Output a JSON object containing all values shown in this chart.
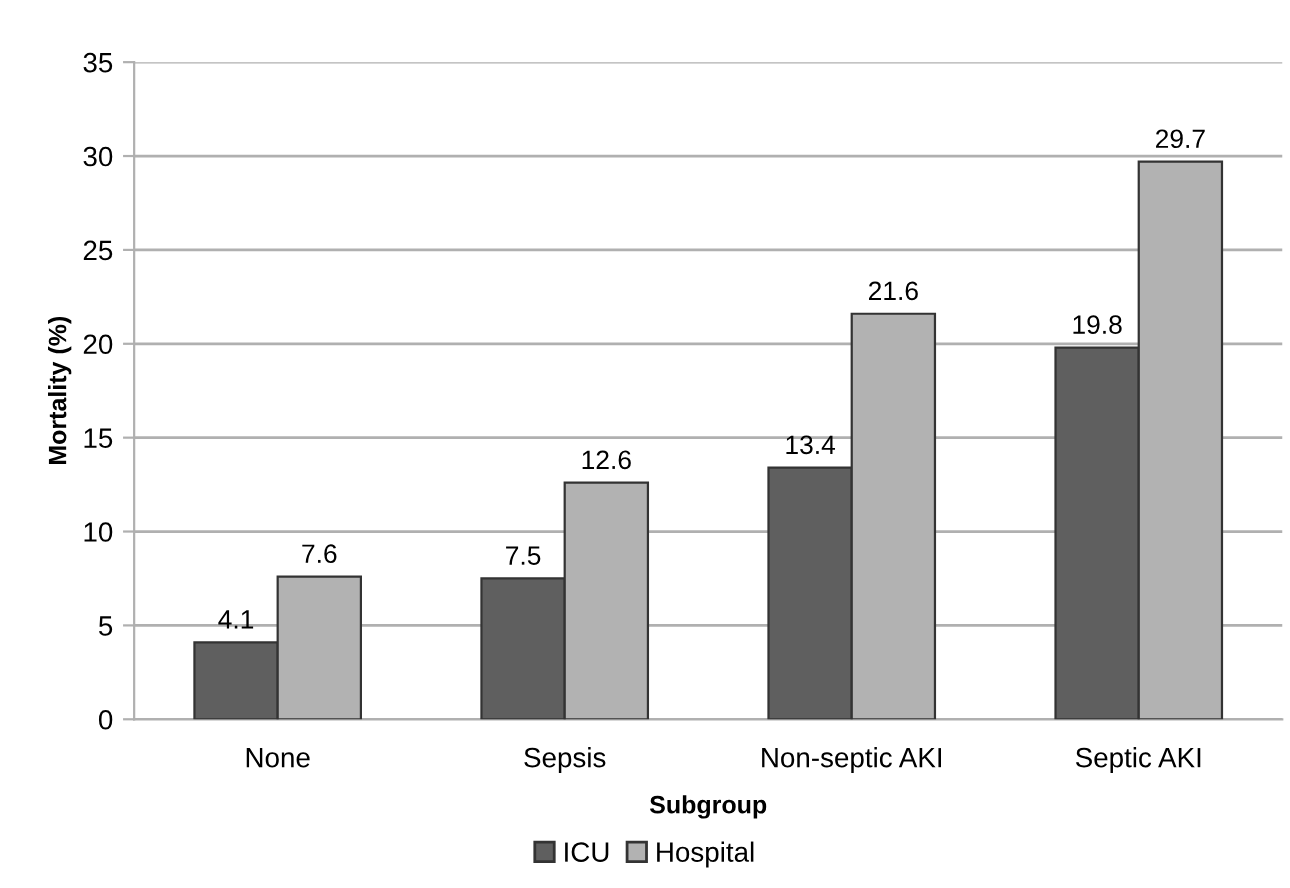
{
  "chart_data": {
    "type": "bar",
    "xlabel": "Subgroup",
    "ylabel": "Mortality (%)",
    "categories": [
      "None",
      "Sepsis",
      "Non-septic AKI",
      "Septic AKI"
    ],
    "series": [
      {
        "name": "ICU",
        "color": "#5f5f5f",
        "values": [
          4.1,
          7.5,
          13.4,
          19.8
        ]
      },
      {
        "name": "Hospital",
        "color": "#b2b2b2",
        "values": [
          7.6,
          12.6,
          21.6,
          29.7
        ]
      }
    ],
    "ylim": [
      0,
      35
    ],
    "yticks": [
      0,
      5,
      10,
      15,
      20,
      25,
      30,
      35
    ],
    "grid": "y",
    "legend": "bottom",
    "data_labels": true
  }
}
